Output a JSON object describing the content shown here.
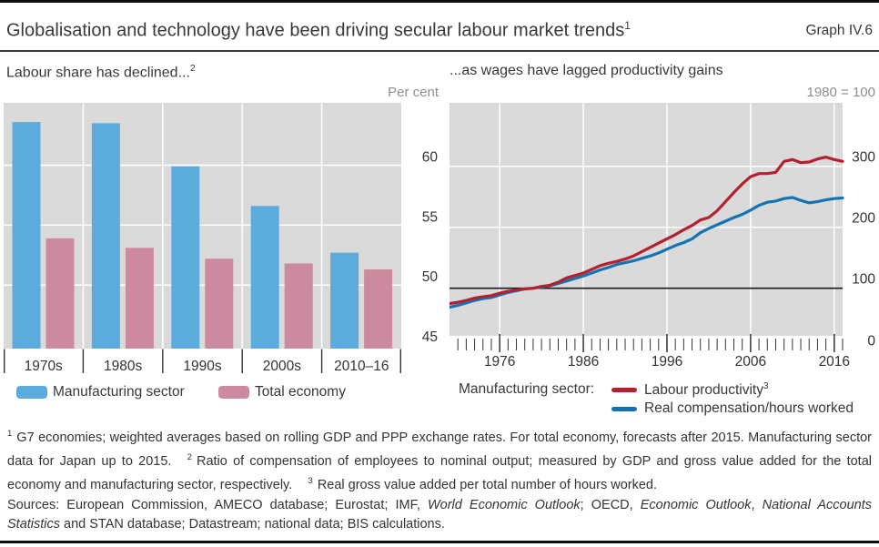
{
  "header": {
    "title": "Globalisation and technology have been driving secular labour market trends",
    "title_sup": "1",
    "graph_label": "Graph IV.6"
  },
  "panels": {
    "left": {
      "subtitle": "Labour share has declined...",
      "subtitle_sup": "2",
      "unit": "Per cent"
    },
    "right": {
      "subtitle": "...as wages have lagged productivity gains",
      "unit": "1980 = 100",
      "legend_prefix": "Manufacturing sector:"
    }
  },
  "colors": {
    "bar_blue": "#5bacdc",
    "bar_pink": "#cb8a9d",
    "line_red": "#b4202e",
    "line_blue": "#1473b4",
    "plot_bg": "#dadada",
    "grid": "#ffffff",
    "axis_dark": "#333333",
    "baseline_black": "#1a1a1a",
    "muted": "#8e8e8e"
  },
  "chart_data": [
    {
      "type": "bar",
      "title": "Labour share has declined...",
      "unit": "Per cent",
      "categories": [
        "1970s",
        "1980s",
        "1990s",
        "2000s",
        "2010–16"
      ],
      "series": [
        {
          "name": "Manufacturing sector",
          "color": "#5bacdc",
          "values": [
            63.6,
            63.5,
            59.9,
            56.6,
            52.7
          ]
        },
        {
          "name": "Total economy",
          "color": "#cb8a9d",
          "values": [
            53.9,
            53.1,
            52.2,
            51.8,
            51.3
          ]
        }
      ],
      "y_ticks": [
        45,
        50,
        55,
        60
      ],
      "y_gridlines": [
        50,
        55,
        60
      ],
      "ylim": [
        44.7,
        65.2
      ],
      "grid": true,
      "legend_position": "bottom"
    },
    {
      "type": "line",
      "title": "...as wages have lagged productivity gains",
      "unit": "1980 = 100",
      "xlim": [
        1970,
        2017
      ],
      "x_ticks": [
        1976,
        1986,
        1996,
        2006,
        2016
      ],
      "y_ticks": [
        0,
        100,
        200,
        300
      ],
      "ylim": [
        22,
        404
      ],
      "baseline_value": 100,
      "grid": true,
      "legend_position": "bottom",
      "years": [
        1970,
        1971,
        1972,
        1973,
        1974,
        1975,
        1976,
        1977,
        1978,
        1979,
        1980,
        1981,
        1982,
        1983,
        1984,
        1985,
        1986,
        1987,
        1988,
        1989,
        1990,
        1991,
        1992,
        1993,
        1994,
        1995,
        1996,
        1997,
        1998,
        1999,
        2000,
        2001,
        2002,
        2003,
        2004,
        2005,
        2006,
        2007,
        2008,
        2009,
        2010,
        2011,
        2012,
        2013,
        2014,
        2015,
        2016,
        2017
      ],
      "series": [
        {
          "name": "Labour productivity",
          "name_sup": "3",
          "color": "#b4202e",
          "values": [
            75,
            77,
            80,
            84,
            86,
            88,
            92,
            95,
            97,
            99,
            100,
            103,
            105,
            110,
            117,
            121,
            125,
            131,
            137,
            141,
            144,
            148,
            153,
            160,
            167,
            174,
            181,
            188,
            196,
            203,
            212,
            216,
            227,
            242,
            257,
            271,
            283,
            288,
            288,
            290,
            308,
            311,
            306,
            307,
            312,
            315,
            311,
            308
          ]
        },
        {
          "name": "Real compensation/hours worked",
          "color": "#1473b4",
          "values": [
            69,
            72,
            76,
            80,
            83,
            85,
            89,
            93,
            96,
            99,
            100,
            102,
            104,
            108,
            112,
            116,
            120,
            125,
            130,
            134,
            139,
            142,
            145,
            149,
            153,
            158,
            164,
            170,
            175,
            181,
            191,
            198,
            204,
            210,
            216,
            221,
            228,
            236,
            241,
            243,
            247,
            249,
            244,
            240,
            242,
            245,
            247,
            248
          ]
        }
      ]
    }
  ],
  "footnotes": [
    {
      "marker": "1",
      "text": "G7 economies; weighted averages based on rolling GDP and PPP exchange rates. For total economy, forecasts after 2015. Manufacturing sector data for Japan up to 2015."
    },
    {
      "marker": "2",
      "text": "Ratio of compensation of employees to nominal output; measured by GDP and gross value added for the total economy and manufacturing sector, respectively."
    },
    {
      "marker": "3",
      "text": "Real gross value added per total number of hours worked."
    }
  ],
  "sources_parts": [
    {
      "text": "Sources: European Commission, AMECO database; Eurostat; IMF, ",
      "italic": false
    },
    {
      "text": "World Economic Outlook",
      "italic": true
    },
    {
      "text": "; OECD, ",
      "italic": false
    },
    {
      "text": "Economic Outlook",
      "italic": true
    },
    {
      "text": ", ",
      "italic": false
    },
    {
      "text": "National Accounts Statistics",
      "italic": true
    },
    {
      "text": " and STAN database; Datastream; national data; BIS calculations.",
      "italic": false
    }
  ]
}
